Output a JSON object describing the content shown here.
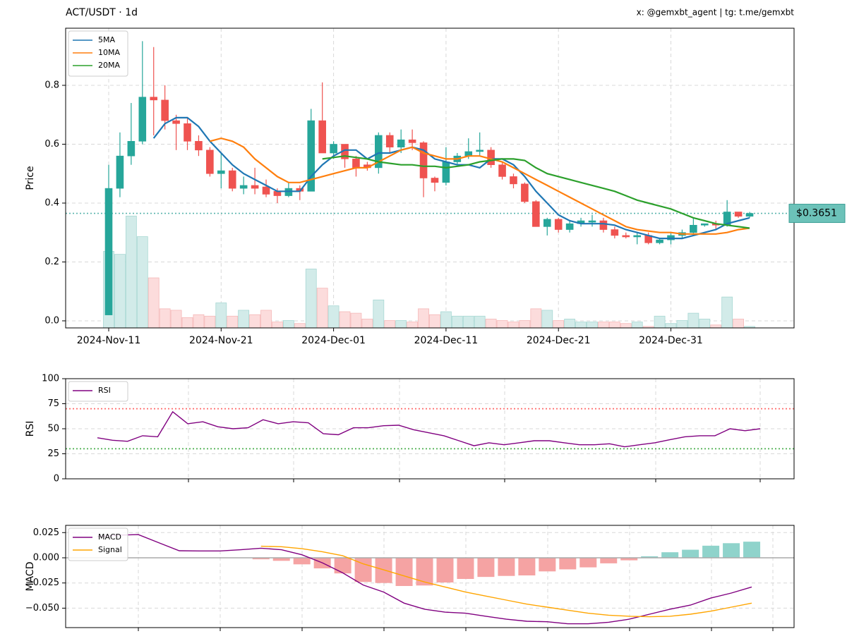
{
  "chart_data": [
    {
      "type": "candlestick",
      "title": "ACT/USDT · 1d",
      "credit": "x: @gemxbt_agent | tg: t.me/gemxbt",
      "ylabel": "Price",
      "categories": [
        "2024-Nov-11",
        null,
        null,
        null,
        null,
        null,
        null,
        null,
        null,
        null,
        "2024-Nov-21",
        null,
        null,
        null,
        null,
        null,
        null,
        null,
        null,
        null,
        "2024-Dec-01",
        null,
        null,
        null,
        null,
        null,
        null,
        null,
        null,
        null,
        "2024-Dec-11",
        null,
        null,
        null,
        null,
        null,
        null,
        null,
        null,
        null,
        "2024-Dec-21",
        null,
        null,
        null,
        null,
        null,
        null,
        null,
        null,
        null,
        "2024-Dec-31",
        null,
        null,
        null,
        null,
        null,
        null,
        null
      ],
      "open": [
        0.02,
        0.45,
        0.56,
        0.61,
        0.76,
        0.75,
        0.68,
        0.67,
        0.61,
        0.58,
        0.5,
        0.51,
        0.45,
        0.46,
        0.455,
        0.44,
        0.425,
        0.45,
        0.44,
        0.68,
        0.57,
        0.6,
        0.55,
        0.53,
        0.52,
        0.63,
        0.59,
        0.615,
        0.605,
        0.485,
        0.47,
        0.54,
        0.56,
        0.575,
        0.58,
        0.53,
        0.49,
        0.465,
        0.405,
        0.32,
        0.345,
        0.31,
        0.33,
        0.335,
        0.34,
        0.31,
        0.29,
        0.285,
        0.29,
        0.265,
        0.275,
        0.29,
        0.3,
        0.325,
        0.33,
        0.325,
        0.37,
        0.355
      ],
      "high": [
        0.53,
        0.64,
        0.74,
        0.95,
        0.93,
        0.8,
        0.7,
        0.69,
        0.63,
        0.59,
        0.57,
        0.52,
        0.49,
        0.52,
        0.48,
        0.45,
        0.47,
        0.46,
        0.72,
        0.81,
        0.61,
        0.6,
        0.56,
        0.54,
        0.64,
        0.64,
        0.65,
        0.65,
        0.61,
        0.49,
        0.59,
        0.57,
        0.62,
        0.64,
        0.59,
        0.54,
        0.5,
        0.47,
        0.41,
        0.35,
        0.35,
        0.34,
        0.35,
        0.36,
        0.35,
        0.32,
        0.3,
        0.3,
        0.3,
        0.28,
        0.3,
        0.31,
        0.35,
        0.33,
        0.34,
        0.41,
        0.37,
        0.37
      ],
      "low": [
        0.02,
        0.42,
        0.53,
        0.6,
        0.63,
        0.65,
        0.58,
        0.58,
        0.56,
        0.49,
        0.45,
        0.44,
        0.43,
        0.43,
        0.42,
        0.4,
        0.42,
        0.41,
        0.44,
        0.57,
        0.55,
        0.52,
        0.49,
        0.51,
        0.5,
        0.57,
        0.57,
        0.58,
        0.42,
        0.44,
        0.46,
        0.53,
        0.55,
        0.56,
        0.52,
        0.48,
        0.45,
        0.4,
        0.32,
        0.29,
        0.3,
        0.3,
        0.32,
        0.32,
        0.3,
        0.28,
        0.28,
        0.26,
        0.26,
        0.26,
        0.26,
        0.28,
        0.29,
        0.32,
        0.31,
        0.32,
        0.35,
        0.35
      ],
      "close": [
        0.45,
        0.56,
        0.61,
        0.76,
        0.75,
        0.68,
        0.67,
        0.61,
        0.58,
        0.5,
        0.51,
        0.45,
        0.46,
        0.45,
        0.43,
        0.425,
        0.45,
        0.44,
        0.68,
        0.57,
        0.6,
        0.55,
        0.52,
        0.52,
        0.63,
        0.59,
        0.615,
        0.605,
        0.485,
        0.47,
        0.54,
        0.56,
        0.575,
        0.58,
        0.53,
        0.49,
        0.465,
        0.405,
        0.32,
        0.345,
        0.31,
        0.33,
        0.34,
        0.34,
        0.31,
        0.29,
        0.285,
        0.29,
        0.265,
        0.275,
        0.29,
        0.3,
        0.325,
        0.33,
        0.325,
        0.37,
        0.355,
        0.3651
      ],
      "volume": [
        0.26,
        0.25,
        0.38,
        0.31,
        0.17,
        0.065,
        0.06,
        0.035,
        0.045,
        0.04,
        0.085,
        0.04,
        0.06,
        0.045,
        0.06,
        0.02,
        0.025,
        0.015,
        0.2,
        0.135,
        0.075,
        0.055,
        0.05,
        0.03,
        0.095,
        0.025,
        0.025,
        0.02,
        0.065,
        0.045,
        0.055,
        0.04,
        0.04,
        0.04,
        0.03,
        0.025,
        0.02,
        0.025,
        0.065,
        0.06,
        0.025,
        0.03,
        0.02,
        0.02,
        0.02,
        0.02,
        0.015,
        0.02,
        0.005,
        0.04,
        0.015,
        0.025,
        0.05,
        0.03,
        0.01,
        0.105,
        0.03,
        0.005
      ],
      "up_color": "#26a69a",
      "down_color": "#ef5350",
      "volume_up_color": "#d2ebe9",
      "volume_down_color": "#fcdcdc",
      "series": [
        {
          "name": "5MA",
          "color": "#1f77b4",
          "values": [
            null,
            null,
            null,
            null,
            0.62,
            0.67,
            0.69,
            0.69,
            0.66,
            0.61,
            0.57,
            0.53,
            0.5,
            0.48,
            0.46,
            0.44,
            0.44,
            0.44,
            0.49,
            0.53,
            0.56,
            0.58,
            0.58,
            0.55,
            0.57,
            0.57,
            0.58,
            0.59,
            0.58,
            0.55,
            0.54,
            0.53,
            0.53,
            0.52,
            0.55,
            0.55,
            0.53,
            0.49,
            0.44,
            0.4,
            0.36,
            0.34,
            0.33,
            0.33,
            0.33,
            0.325,
            0.31,
            0.3,
            0.29,
            0.28,
            0.28,
            0.28,
            0.29,
            0.3,
            0.31,
            0.33,
            0.34,
            0.35
          ]
        },
        {
          "name": "10MA",
          "color": "#ff7f0e",
          "values": [
            null,
            null,
            null,
            null,
            null,
            null,
            null,
            null,
            null,
            0.61,
            0.62,
            0.61,
            0.59,
            0.55,
            0.52,
            0.49,
            0.47,
            0.47,
            0.48,
            0.49,
            0.5,
            0.51,
            0.52,
            0.52,
            0.54,
            0.56,
            0.58,
            0.59,
            0.57,
            0.56,
            0.55,
            0.55,
            0.56,
            0.56,
            0.55,
            0.54,
            0.52,
            0.5,
            0.48,
            0.46,
            0.44,
            0.42,
            0.4,
            0.38,
            0.36,
            0.34,
            0.32,
            0.31,
            0.305,
            0.3,
            0.3,
            0.295,
            0.295,
            0.295,
            0.295,
            0.3,
            0.31,
            0.315
          ]
        },
        {
          "name": "20MA",
          "color": "#2ca02c",
          "values": [
            null,
            null,
            null,
            null,
            null,
            null,
            null,
            null,
            null,
            null,
            null,
            null,
            null,
            null,
            null,
            null,
            null,
            null,
            null,
            0.55,
            0.555,
            0.56,
            0.555,
            0.55,
            0.54,
            0.535,
            0.53,
            0.53,
            0.525,
            0.525,
            0.52,
            0.525,
            0.53,
            0.54,
            0.545,
            0.55,
            0.55,
            0.545,
            0.52,
            0.5,
            0.49,
            0.48,
            0.47,
            0.46,
            0.45,
            0.44,
            0.425,
            0.41,
            0.4,
            0.39,
            0.38,
            0.365,
            0.35,
            0.34,
            0.33,
            0.325,
            0.32,
            0.315
          ]
        }
      ],
      "last_price": {
        "value": 0.3651,
        "label": "$0.3651"
      },
      "ylim": [
        -0.024,
        0.994
      ],
      "yticks": [
        {
          "value": 0,
          "label": "0.0"
        },
        0.2,
        0.4,
        0.6,
        0.8
      ],
      "grid": true,
      "legend": "upper left"
    },
    {
      "type": "line",
      "ylabel": "RSI",
      "series": [
        {
          "name": "RSI",
          "color": "#800080",
          "values": [
            41,
            38.5,
            37.5,
            43,
            42,
            67,
            55,
            57,
            52,
            50,
            51,
            59,
            55,
            57,
            56,
            45,
            44,
            51,
            51,
            53,
            53.5,
            49,
            46,
            43,
            38,
            33,
            36,
            34,
            36,
            38,
            38,
            36,
            34,
            34,
            35,
            32,
            34,
            36,
            39,
            42,
            43,
            43,
            50,
            48,
            50
          ]
        }
      ],
      "hlines": [
        {
          "value": 70,
          "color": "#ff6b6b"
        },
        {
          "value": 30,
          "color": "#4caf50"
        }
      ],
      "ylim": [
        0,
        100
      ],
      "yticks": [
        0,
        25,
        50,
        75,
        100
      ],
      "grid": true,
      "legend": "upper left"
    },
    {
      "type": "macd",
      "ylabel": "MACD",
      "series": [
        {
          "name": "MACD",
          "color": "#800080",
          "values": [
            0.021,
            0.0225,
            0.023,
            0.015,
            0.007,
            0.0068,
            0.0068,
            0.008,
            0.0095,
            0.008,
            0.003,
            -0.005,
            -0.015,
            -0.027,
            -0.034,
            -0.045,
            -0.051,
            -0.054,
            -0.055,
            -0.058,
            -0.061,
            -0.063,
            -0.0635,
            -0.0655,
            -0.0655,
            -0.064,
            -0.061,
            -0.056,
            -0.051,
            -0.047,
            -0.04,
            -0.035,
            -0.029
          ]
        },
        {
          "name": "Signal",
          "color": "#ffa500",
          "values": [
            null,
            null,
            null,
            null,
            null,
            null,
            null,
            null,
            0.0115,
            0.011,
            0.009,
            0.006,
            0.002,
            -0.006,
            -0.012,
            -0.018,
            -0.024,
            -0.029,
            -0.034,
            -0.038,
            -0.042,
            -0.046,
            -0.049,
            -0.052,
            -0.055,
            -0.057,
            -0.058,
            -0.0585,
            -0.058,
            -0.056,
            -0.053,
            -0.049,
            -0.045
          ]
        }
      ],
      "histogram": [
        null,
        null,
        null,
        null,
        null,
        null,
        null,
        null,
        -0.0015,
        -0.003,
        -0.0065,
        -0.0105,
        -0.0155,
        -0.024,
        -0.025,
        -0.028,
        -0.0275,
        -0.0245,
        -0.021,
        -0.019,
        -0.018,
        -0.0175,
        -0.0135,
        -0.0115,
        -0.0095,
        -0.0055,
        -0.0025,
        0.0015,
        0.0055,
        0.008,
        0.012,
        0.0145,
        0.016
      ],
      "hist_up_color": "#8fd3cb",
      "hist_down_color": "#f5a3a3",
      "ylim": [
        -0.0693,
        0.0322
      ],
      "yticks": [
        {
          "value": -0.05,
          "label": "−0.050"
        },
        {
          "value": -0.025,
          "label": "−0.025"
        },
        {
          "value": 0,
          "label": "0.000"
        },
        0.025
      ],
      "grid": true,
      "legend": "upper left"
    }
  ]
}
